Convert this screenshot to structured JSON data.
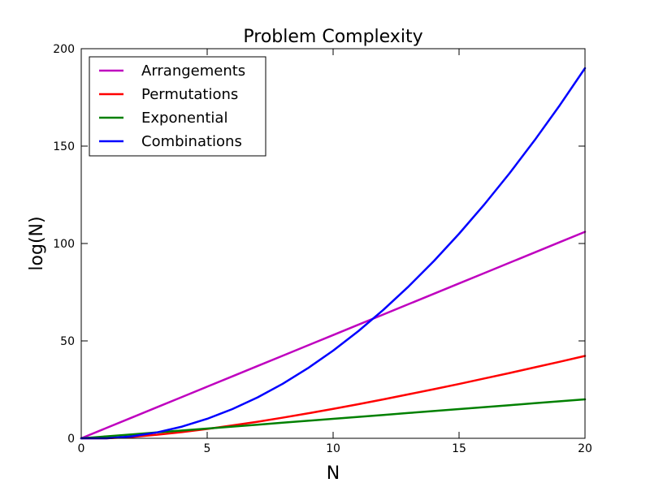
{
  "chart_data": {
    "type": "line",
    "title": "Problem Complexity",
    "xlabel": "N",
    "ylabel": "log(N)",
    "xlim": [
      0,
      20
    ],
    "ylim": [
      0,
      200
    ],
    "xticks": [
      0,
      5,
      10,
      15,
      20
    ],
    "yticks": [
      0,
      50,
      100,
      150,
      200
    ],
    "xtick_labels": [
      "0",
      "5",
      "10",
      "15",
      "20"
    ],
    "ytick_labels": [
      "0",
      "50",
      "100",
      "150",
      "200"
    ],
    "grid": false,
    "legend_position": "top-left",
    "x": [
      0,
      1,
      2,
      3,
      4,
      5,
      6,
      7,
      8,
      9,
      10,
      11,
      12,
      13,
      14,
      15,
      16,
      17,
      18,
      19,
      20
    ],
    "series": [
      {
        "name": "Arrangements",
        "color": "#bf00bf",
        "values": [
          0.0,
          5.3,
          10.6,
          15.9,
          21.2,
          26.5,
          31.8,
          37.1,
          42.4,
          47.7,
          53.0,
          58.3,
          63.6,
          68.9,
          74.2,
          79.5,
          84.8,
          90.1,
          95.4,
          100.7,
          106.0
        ]
      },
      {
        "name": "Permutations",
        "color": "#ff0000",
        "values": [
          0.0,
          0.0,
          0.7,
          1.8,
          3.2,
          4.8,
          6.6,
          8.5,
          10.6,
          12.8,
          15.1,
          17.5,
          20.0,
          22.6,
          25.2,
          27.9,
          30.7,
          33.5,
          36.4,
          39.3,
          42.3
        ]
      },
      {
        "name": "Exponential",
        "color": "#008000",
        "values": [
          0.0,
          1.0,
          2.0,
          3.0,
          4.0,
          5.0,
          6.0,
          7.0,
          8.0,
          9.0,
          10.0,
          11.0,
          12.0,
          13.0,
          14.0,
          15.0,
          16.0,
          17.0,
          18.0,
          19.0,
          20.0
        ]
      },
      {
        "name": "Combinations",
        "color": "#0000ff",
        "values": [
          0.0,
          0.0,
          1.0,
          3.0,
          6.0,
          10.0,
          15.0,
          21.0,
          28.0,
          36.0,
          45.0,
          55.0,
          66.0,
          78.0,
          91.0,
          105.0,
          120.0,
          136.0,
          153.0,
          171.0,
          190.0
        ]
      }
    ]
  }
}
